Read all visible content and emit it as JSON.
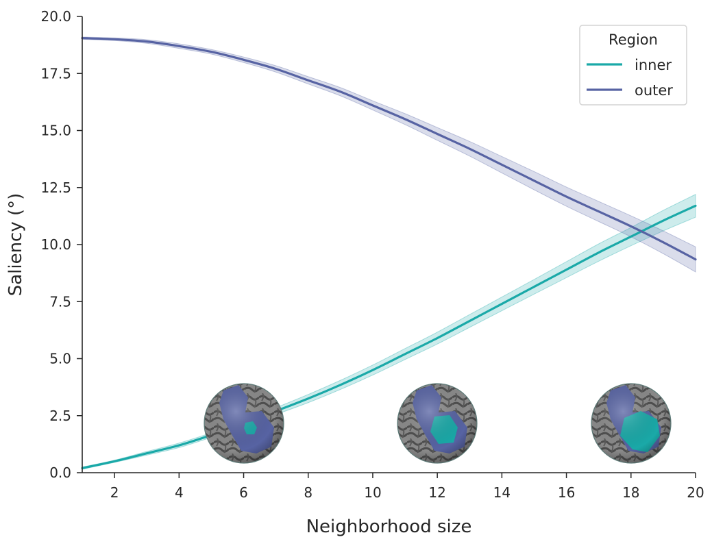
{
  "chart_data": {
    "type": "line",
    "title": "",
    "xlabel": "Neighborhood size",
    "ylabel": "Saliency  (°)",
    "xlim": [
      1,
      20
    ],
    "ylim": [
      0,
      20
    ],
    "x_ticks": [
      "2",
      "4",
      "6",
      "8",
      "10",
      "12",
      "14",
      "16",
      "18",
      "20"
    ],
    "y_ticks": [
      "0.0",
      "2.5",
      "5.0",
      "7.5",
      "10.0",
      "12.5",
      "15.0",
      "17.5",
      "20.0"
    ],
    "grid": false,
    "legend": {
      "title": "Region",
      "placement": "top-right"
    },
    "x": [
      1,
      2,
      3,
      4,
      5,
      6,
      7,
      8,
      9,
      10,
      11,
      12,
      13,
      14,
      15,
      16,
      17,
      18,
      19,
      20
    ],
    "series": [
      {
        "name": "inner",
        "color": "#1aa9a8",
        "values": [
          0.2,
          0.5,
          0.85,
          1.2,
          1.65,
          2.15,
          2.7,
          3.25,
          3.85,
          4.5,
          5.2,
          5.9,
          6.65,
          7.4,
          8.15,
          8.9,
          9.65,
          10.35,
          11.05,
          11.7
        ],
        "ci_halfwidth": [
          0.05,
          0.05,
          0.08,
          0.1,
          0.1,
          0.12,
          0.15,
          0.18,
          0.2,
          0.22,
          0.24,
          0.26,
          0.28,
          0.3,
          0.32,
          0.35,
          0.38,
          0.4,
          0.45,
          0.5
        ]
      },
      {
        "name": "outer",
        "color": "#5763a3",
        "values": [
          19.05,
          19.0,
          18.9,
          18.7,
          18.45,
          18.1,
          17.7,
          17.2,
          16.7,
          16.1,
          15.5,
          14.85,
          14.2,
          13.5,
          12.8,
          12.1,
          11.45,
          10.8,
          10.1,
          9.35
        ],
        "ci_halfwidth": [
          0.05,
          0.06,
          0.08,
          0.1,
          0.1,
          0.12,
          0.14,
          0.16,
          0.18,
          0.2,
          0.24,
          0.28,
          0.32,
          0.36,
          0.4,
          0.42,
          0.44,
          0.46,
          0.5,
          0.55
        ]
      }
    ],
    "inset_images": [
      {
        "subject": "cortical-sphere",
        "neighborhood_size": 6,
        "inner_region": "small"
      },
      {
        "subject": "cortical-sphere",
        "neighborhood_size": 12,
        "inner_region": "medium"
      },
      {
        "subject": "cortical-sphere",
        "neighborhood_size": 18,
        "inner_region": "large"
      }
    ]
  }
}
